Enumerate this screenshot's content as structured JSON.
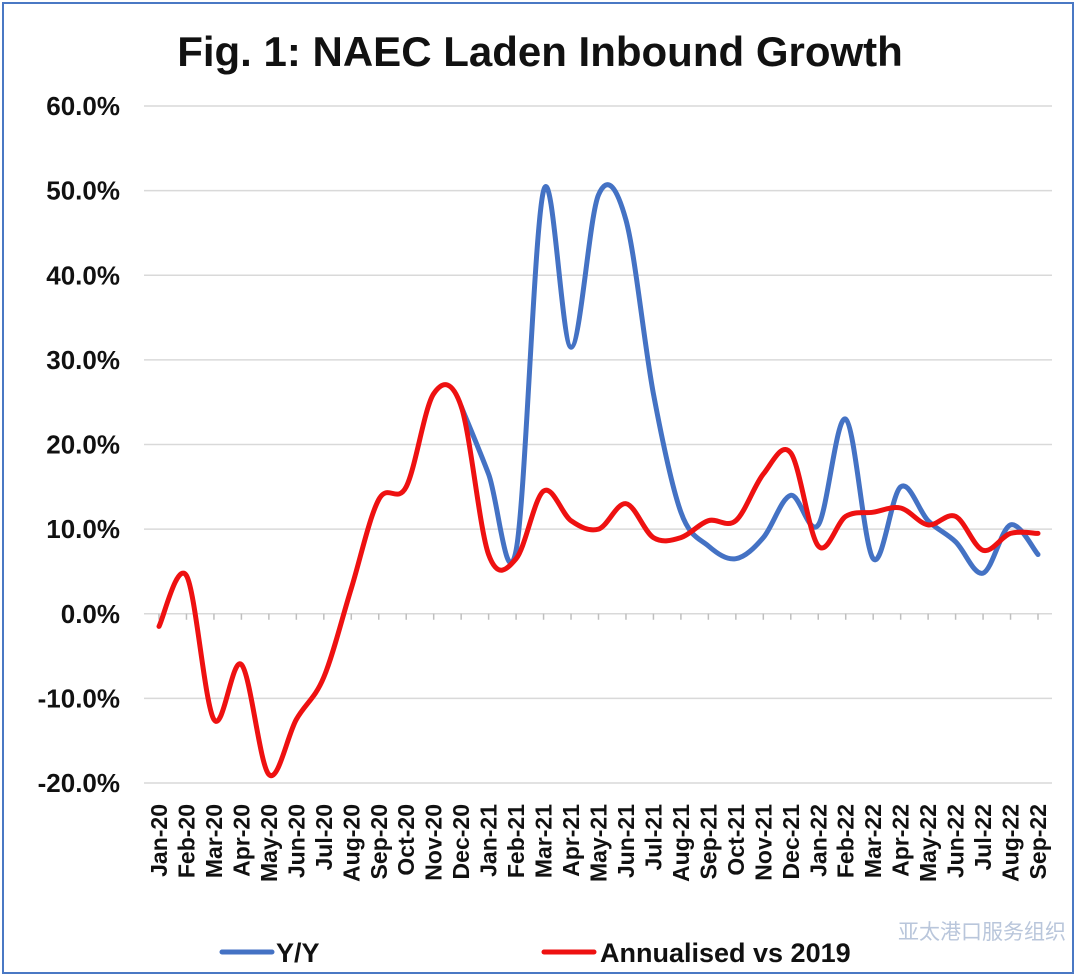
{
  "chart_data": {
    "type": "line",
    "title": "Fig. 1: NAEC Laden Inbound Growth",
    "xlabel": "",
    "ylabel": "",
    "ylim": [
      -20,
      60
    ],
    "y_ticks": [
      60,
      50,
      40,
      30,
      20,
      10,
      0,
      -10,
      -20
    ],
    "y_tick_labels": [
      "60.0%",
      "50.0%",
      "40.0%",
      "30.0%",
      "20.0%",
      "10.0%",
      "0.0%",
      "-10.0%",
      "-20.0%"
    ],
    "grid": "horizontal",
    "legend_position": "bottom",
    "categories": [
      "Jan-20",
      "Feb-20",
      "Mar-20",
      "Apr-20",
      "May-20",
      "Jun-20",
      "Jul-20",
      "Aug-20",
      "Sep-20",
      "Oct-20",
      "Nov-20",
      "Dec-20",
      "Jan-21",
      "Feb-21",
      "Mar-21",
      "Apr-21",
      "May-21",
      "Jun-21",
      "Jul-21",
      "Aug-21",
      "Sep-21",
      "Oct-21",
      "Nov-21",
      "Dec-21",
      "Jan-22",
      "Feb-22",
      "Mar-22",
      "Apr-22",
      "May-22",
      "Jun-22",
      "Jul-22",
      "Aug-22",
      "Sep-22"
    ],
    "series": [
      {
        "name": "Y/Y",
        "color": "#4472c4",
        "values": [
          null,
          null,
          null,
          null,
          null,
          null,
          null,
          null,
          null,
          null,
          null,
          24.5,
          16.5,
          7.5,
          50.0,
          31.5,
          49.5,
          46.5,
          26.0,
          12.0,
          8.0,
          6.5,
          9.0,
          14.0,
          10.5,
          23.0,
          6.5,
          15.0,
          11.0,
          8.5,
          4.8,
          10.5,
          7.0
        ]
      },
      {
        "name": "Annualised vs 2019",
        "color": "#ee1111",
        "values": [
          -1.5,
          4.5,
          -12.5,
          -6.0,
          -19.0,
          -12.5,
          -7.5,
          3.0,
          13.5,
          15.0,
          26.0,
          24.5,
          7.0,
          6.5,
          14.5,
          11.0,
          10.0,
          13.0,
          9.0,
          9.0,
          11.0,
          11.0,
          16.5,
          19.0,
          8.0,
          11.5,
          12.0,
          12.5,
          10.5,
          11.5,
          7.5,
          9.5,
          9.5
        ]
      }
    ]
  },
  "watermark": "亚太港口服务组织"
}
